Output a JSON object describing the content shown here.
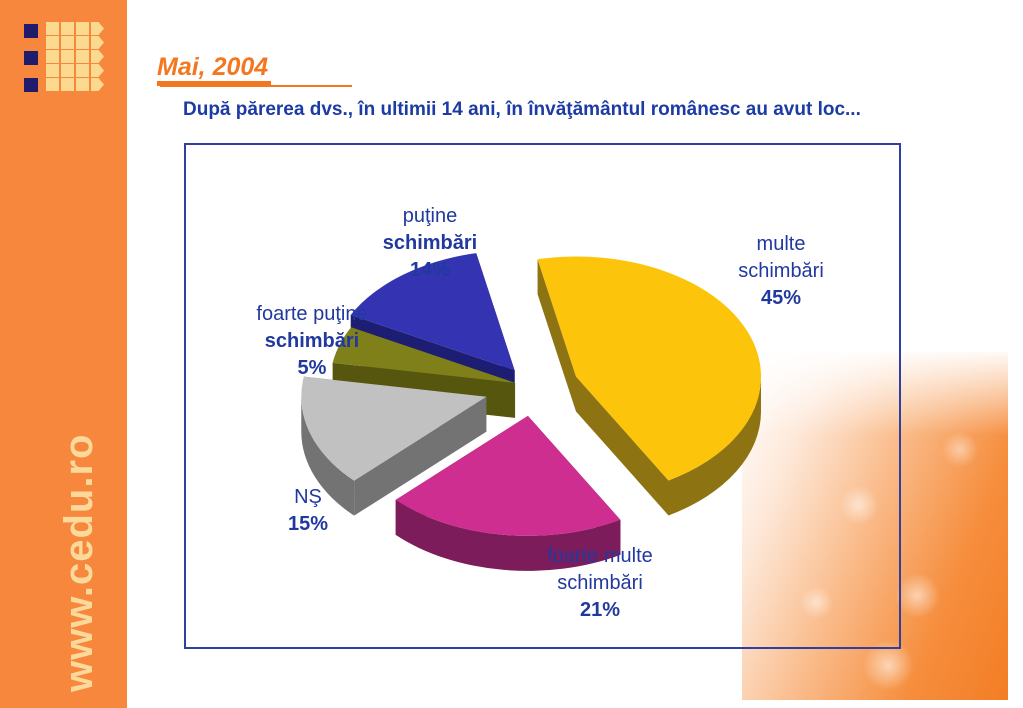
{
  "slide": {
    "date_label": "Mai, 2004",
    "question": "După părerea dvs., în ultimii 14 ani, în învăţământul românesc au avut loc...",
    "website": "www.cedu.ro"
  },
  "chart_data": {
    "type": "pie",
    "style": "3d-exploded",
    "title": "",
    "unit": "percent",
    "start_angle_deg": -12,
    "legend": "none",
    "labels_outside": true,
    "slices": [
      {
        "label": "multe schimbări",
        "value": 45,
        "color": "#FCC40A",
        "side_color": "#8E7313",
        "label_lines": [
          {
            "text": "multe",
            "bold": false
          },
          {
            "text": "schimbări",
            "bold": false
          },
          {
            "text": "45%",
            "bold": true
          }
        ]
      },
      {
        "label": "foarte multe schimbări",
        "value": 21,
        "color": "#CE2E8F",
        "side_color": "#7D1C5A",
        "label_lines": [
          {
            "text": "foarte multe",
            "bold": false
          },
          {
            "text": "schimbări",
            "bold": false
          },
          {
            "text": "21%",
            "bold": true
          }
        ]
      },
      {
        "label": "NŞ",
        "value": 15,
        "color": "#C1C1C1",
        "side_color": "#737373",
        "label_lines": [
          {
            "text": "NŞ",
            "bold": false
          },
          {
            "text": "15%",
            "bold": true
          }
        ]
      },
      {
        "label": "foarte puţine schimbări",
        "value": 5,
        "color": "#80801A",
        "side_color": "#56560F",
        "label_lines": [
          {
            "text": "foarte puţine",
            "bold": false
          },
          {
            "text": "schimbări",
            "bold": true
          },
          {
            "text": "5%",
            "bold": true
          }
        ]
      },
      {
        "label": "puţine schimbări",
        "value": 14,
        "color": "#3434B3",
        "side_color": "#1D1D73",
        "label_lines": [
          {
            "text": "puţine",
            "bold": false
          },
          {
            "text": "schimbări",
            "bold": true
          },
          {
            "text": "14%",
            "bold": true
          }
        ]
      }
    ]
  },
  "colors": {
    "sidebar_orange": "#F6873C",
    "accent_orange": "#F4771F",
    "navy_text": "#21399F",
    "cream": "#FBD99A",
    "frame_border": "#3040A0",
    "logo_navy": "#201C6B"
  }
}
